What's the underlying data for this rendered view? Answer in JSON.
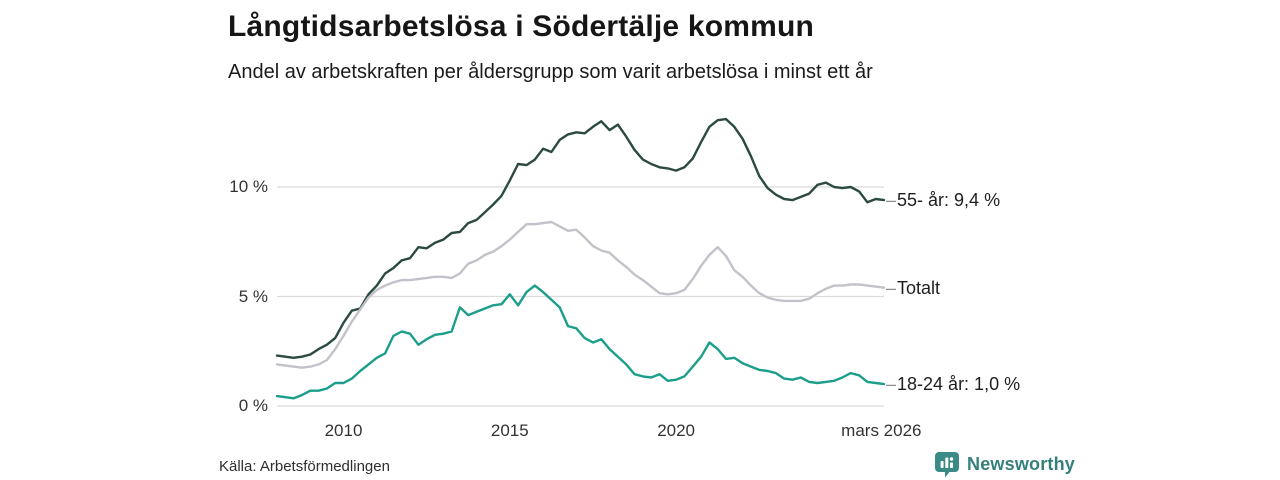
{
  "header": {
    "title": "Långtidsarbetslösa i Södertälje kommun",
    "subtitle": "Andel av arbetskraften per åldersgrupp som varit arbetslösa i minst ett år"
  },
  "footer": {
    "source": "Källa: Arbetsförmedlingen",
    "brand": "Newsworthy"
  },
  "colors": {
    "series_55": "#2a4a42",
    "series_total": "#c3c2ca",
    "series_1824": "#1b9e8a",
    "gridline": "#dcdada",
    "brand_teal": "#3a8a86"
  },
  "chart_data": {
    "type": "line",
    "title": "Långtidsarbetslösa i Södertälje kommun",
    "subtitle": "Andel av arbetskraften per åldersgrupp som varit arbetslösa i minst ett år",
    "grid": "horizontal",
    "legend_position": "right-end-labels",
    "connector": "–",
    "xlim": [
      2008.0,
      2026.25
    ],
    "ylim": [
      0,
      13.8
    ],
    "x_start": 2008.0,
    "x_step": 0.25,
    "x_ticks": [
      {
        "value": 2010,
        "label": "2010"
      },
      {
        "value": 2015,
        "label": "2015"
      },
      {
        "value": 2020,
        "label": "2020"
      },
      {
        "value": 2026.17,
        "label": "mars 2026"
      }
    ],
    "y_ticks": [
      {
        "value": 0,
        "label": "0 %"
      },
      {
        "value": 5,
        "label": "5 %"
      },
      {
        "value": 10,
        "label": "10 %"
      }
    ],
    "series": [
      {
        "name": "55- år",
        "label": "55- år: 9,4 %",
        "last_value_label": "9,4 %",
        "color": "#2a4a42",
        "values": [
          2.3,
          2.25,
          2.2,
          2.25,
          2.35,
          2.6,
          2.8,
          3.1,
          3.8,
          4.35,
          4.45,
          5.1,
          5.5,
          6.05,
          6.3,
          6.65,
          6.75,
          7.25,
          7.2,
          7.45,
          7.6,
          7.9,
          7.95,
          8.35,
          8.5,
          8.85,
          9.2,
          9.6,
          10.3,
          11.05,
          11.0,
          11.25,
          11.75,
          11.6,
          12.15,
          12.4,
          12.5,
          12.45,
          12.75,
          13.0,
          12.6,
          12.85,
          12.3,
          11.7,
          11.25,
          11.05,
          10.9,
          10.85,
          10.75,
          10.9,
          11.3,
          12.05,
          12.75,
          13.05,
          13.1,
          12.75,
          12.2,
          11.4,
          10.5,
          9.95,
          9.65,
          9.45,
          9.4,
          9.55,
          9.7,
          10.1,
          10.2,
          10.0,
          9.95,
          10.0,
          9.8,
          9.3,
          9.45,
          9.4
        ]
      },
      {
        "name": "Totalt",
        "label": "Totalt",
        "last_value_label": "",
        "color": "#c3c2ca",
        "values": [
          1.9,
          1.85,
          1.8,
          1.75,
          1.8,
          1.9,
          2.1,
          2.6,
          3.2,
          3.85,
          4.4,
          4.95,
          5.3,
          5.5,
          5.65,
          5.75,
          5.75,
          5.8,
          5.85,
          5.9,
          5.9,
          5.85,
          6.05,
          6.5,
          6.65,
          6.9,
          7.05,
          7.3,
          7.6,
          7.95,
          8.3,
          8.3,
          8.35,
          8.4,
          8.2,
          8.0,
          8.05,
          7.7,
          7.3,
          7.1,
          7.0,
          6.65,
          6.35,
          6.0,
          5.75,
          5.45,
          5.15,
          5.1,
          5.15,
          5.3,
          5.8,
          6.4,
          6.9,
          7.25,
          6.85,
          6.2,
          5.9,
          5.5,
          5.15,
          4.95,
          4.85,
          4.8,
          4.8,
          4.8,
          4.9,
          5.15,
          5.35,
          5.5,
          5.5,
          5.55,
          5.55,
          5.5,
          5.45,
          5.4
        ]
      },
      {
        "name": "18-24 år",
        "label": "18-24 år: 1,0 %",
        "last_value_label": "1,0 %",
        "color": "#1b9e8a",
        "values": [
          0.45,
          0.4,
          0.35,
          0.5,
          0.7,
          0.7,
          0.8,
          1.05,
          1.05,
          1.25,
          1.6,
          1.9,
          2.2,
          2.4,
          3.2,
          3.4,
          3.3,
          2.8,
          3.05,
          3.25,
          3.3,
          3.4,
          4.5,
          4.15,
          4.3,
          4.45,
          4.6,
          4.65,
          5.1,
          4.6,
          5.2,
          5.5,
          5.2,
          4.85,
          4.5,
          3.65,
          3.55,
          3.1,
          2.9,
          3.05,
          2.6,
          2.25,
          1.9,
          1.45,
          1.35,
          1.3,
          1.45,
          1.15,
          1.2,
          1.35,
          1.8,
          2.25,
          2.9,
          2.6,
          2.15,
          2.2,
          1.95,
          1.8,
          1.65,
          1.6,
          1.5,
          1.25,
          1.2,
          1.3,
          1.1,
          1.05,
          1.1,
          1.15,
          1.3,
          1.5,
          1.4,
          1.1,
          1.05,
          1.0
        ]
      }
    ]
  }
}
